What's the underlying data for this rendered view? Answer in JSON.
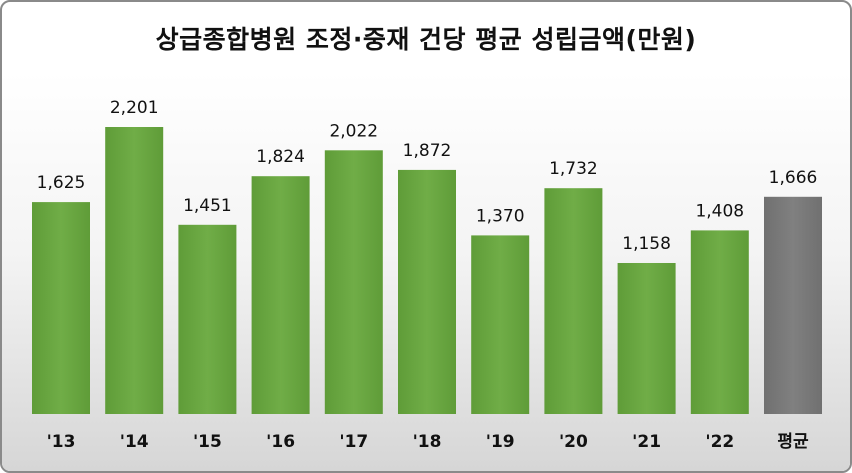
{
  "chart_data": {
    "type": "bar",
    "title": "상급종합병원 조정·중재 건당 평균 성립금액(만원)",
    "categories": [
      "'13",
      "'14",
      "'15",
      "'16",
      "'17",
      "'18",
      "'19",
      "'20",
      "'21",
      "'22",
      "평균"
    ],
    "values": [
      1625,
      2201,
      1451,
      1824,
      2022,
      1872,
      1370,
      1732,
      1158,
      1408,
      1666
    ],
    "value_labels": [
      "1,625",
      "2,201",
      "1,451",
      "1,824",
      "2,022",
      "1,872",
      "1,370",
      "1,732",
      "1,158",
      "1,408",
      "1,666"
    ],
    "ylim": [
      0,
      2201
    ],
    "grid": false,
    "legend": "none",
    "colors": {
      "bar": "#70ad47",
      "bar_dark": "#4f8a2c",
      "average_bar": "#7f7f7f",
      "average_bar_dark": "#5e5e5e"
    }
  }
}
